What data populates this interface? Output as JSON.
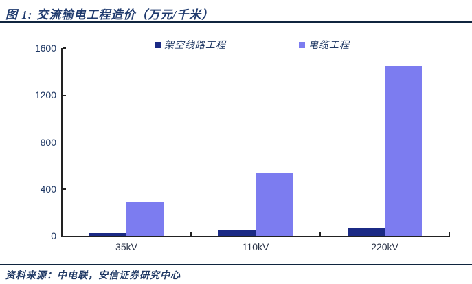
{
  "header": {
    "figure_label": "图 1:",
    "figure_title": "交流输电工程造价（万元/千米）"
  },
  "footer": {
    "source": "资料来源：中电联，安信证券研究中心"
  },
  "colors": {
    "title_text": "#1F3A6E",
    "rule": "#10253F",
    "axis": "#222222",
    "y_tick_label": "#1F3864",
    "x_tick_label": "#2A3347",
    "overhead_bar": "#1B2A85",
    "cable_bar": "#7C7CF0"
  },
  "chart_data": {
    "type": "bar",
    "title": "交流输电工程造价（万元/千米）",
    "categories": [
      "35kV",
      "110kV",
      "220kV"
    ],
    "series": [
      {
        "name": "架空线路工程",
        "color": "#1B2A85",
        "values": [
          25,
          50,
          70
        ]
      },
      {
        "name": "电缆工程",
        "color": "#7C7CF0",
        "values": [
          290,
          535,
          1450
        ]
      }
    ],
    "xlabel": "",
    "ylabel": "",
    "ylim": [
      0,
      1600
    ],
    "yticks": [
      0,
      400,
      800,
      1200,
      1600
    ],
    "grid": false,
    "legend_position": "top"
  }
}
